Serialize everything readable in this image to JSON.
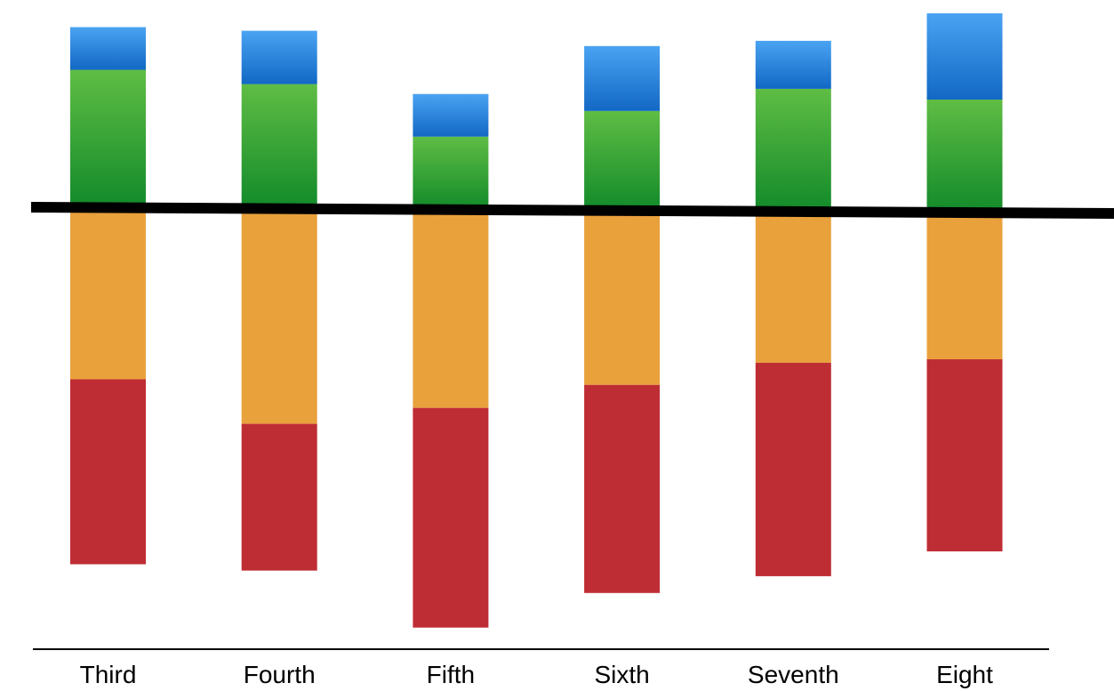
{
  "chart_data": {
    "type": "bar",
    "stacked": true,
    "diverging": true,
    "categories": [
      "Third",
      "Fourth",
      "Fifth",
      "Sixth",
      "Seventh",
      "Eight"
    ],
    "series": [
      {
        "side": "above",
        "values": [
          155,
          140,
          82,
          112,
          138,
          127
        ],
        "color_top": "#5fbd44",
        "color_bottom": "#128a2a"
      },
      {
        "side": "above",
        "values": [
          48,
          60,
          48,
          73,
          54,
          97
        ],
        "color_top": "#4aa3f2",
        "color_bottom": "#1268c4"
      },
      {
        "side": "below",
        "values": [
          193,
          242,
          223,
          196,
          170,
          165
        ],
        "color": "#e9a13c"
      },
      {
        "side": "below",
        "values": [
          208,
          165,
          247,
          234,
          240,
          216
        ],
        "color": "#bf2d34"
      }
    ],
    "title": "",
    "xlabel": "",
    "ylabel": "",
    "y_axis_shown": false,
    "grid": false,
    "legend": "none",
    "reference_line": {
      "color": "#000000",
      "slightly_tilted": true
    },
    "baseline_axis_color": "#000000"
  }
}
